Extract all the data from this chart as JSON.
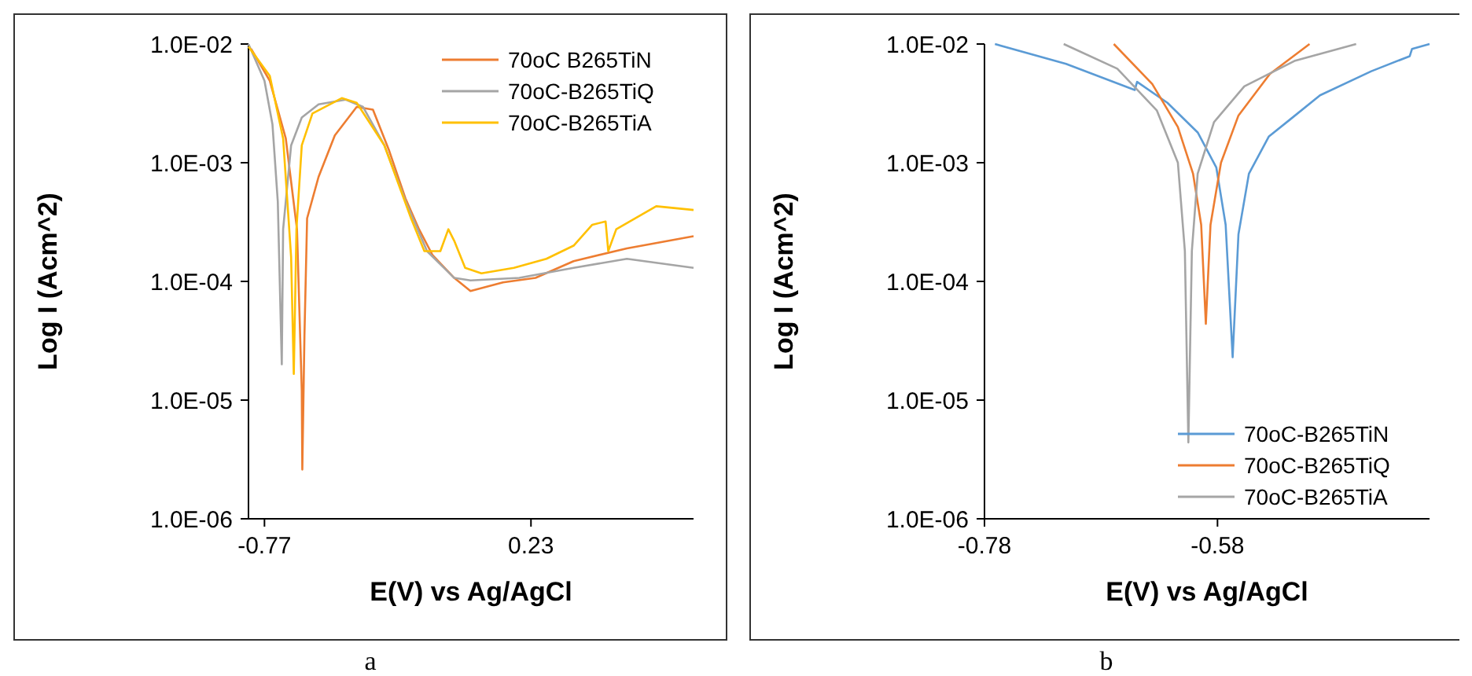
{
  "chart_data": [
    {
      "type": "line",
      "xlabel": "E(V) vs Ag/AgCl",
      "ylabel": "Log I (Acm^2)",
      "annotations": [
        "a"
      ],
      "log": "y",
      "grid": false,
      "legend": "top right",
      "xlim": [
        -0.83,
        0.84
      ],
      "xticks": [
        -0.77,
        0.23
      ],
      "ylim": [
        1e-06,
        0.01
      ],
      "yticks": [
        {
          "value": 0.01,
          "label": "1.0E-02"
        },
        {
          "value": 0.001,
          "label": "1.0E-03"
        },
        {
          "value": 0.0001,
          "label": "1.0E-04"
        },
        {
          "value": 1e-05,
          "label": "1.0E-05"
        },
        {
          "value": 1e-06,
          "label": "1.0E-06"
        }
      ],
      "series": [
        {
          "name": "70oC B265TiN",
          "color": "#ed7d31",
          "x": [
            -0.82,
            -0.75,
            -0.69,
            -0.648,
            -0.63,
            -0.628,
            -0.62,
            -0.61,
            -0.567,
            -0.506,
            -0.424,
            -0.363,
            -0.302,
            -0.241,
            -0.19,
            -0.139,
            -0.058,
            0.003,
            0.125,
            0.247,
            0.39,
            0.59,
            0.84
          ],
          "values": [
            0.0091,
            0.0049,
            0.0016,
            0.000275,
            1.2e-05,
            2.6e-06,
            3.5e-05,
            0.00034,
            0.00076,
            0.0017,
            0.00295,
            0.0028,
            0.00126,
            0.0005,
            0.000275,
            0.000166,
            0.000107,
            8.3e-05,
            9.8e-05,
            0.000107,
            0.000148,
            0.00019,
            0.00024
          ]
        },
        {
          "name": "70oC-B265TiQ",
          "color": "#a5a5a5",
          "x": [
            -0.83,
            -0.77,
            -0.74,
            -0.72,
            -0.705,
            -0.7,
            -0.67,
            -0.63,
            -0.567,
            -0.465,
            -0.4,
            -0.32,
            -0.24,
            -0.16,
            -0.058,
            0.003,
            0.186,
            0.39,
            0.59,
            0.84
          ],
          "values": [
            0.01,
            0.0049,
            0.0021,
            0.00047,
            2e-05,
            0.000275,
            0.0014,
            0.0024,
            0.0031,
            0.0034,
            0.00295,
            0.0014,
            0.00047,
            0.00018,
            0.000107,
            0.000102,
            0.000107,
            0.00013,
            0.000155,
            0.00013
          ]
        },
        {
          "name": "70oC-B265TiA",
          "color": "#ffc000",
          "x": [
            -0.83,
            -0.75,
            -0.7,
            -0.67,
            -0.66,
            -0.65,
            -0.63,
            -0.59,
            -0.48,
            -0.424,
            -0.32,
            -0.22,
            -0.17,
            -0.11,
            -0.08,
            -0.058,
            -0.017,
            0.044,
            0.166,
            0.288,
            0.39,
            0.46,
            0.51,
            0.52,
            0.55,
            0.7,
            0.84
          ],
          "values": [
            0.0095,
            0.0054,
            0.0016,
            0.00016,
            1.66e-05,
            0.000275,
            0.0014,
            0.0026,
            0.0035,
            0.0032,
            0.0014,
            0.00034,
            0.00018,
            0.00018,
            0.000275,
            0.00022,
            0.00013,
            0.000117,
            0.00013,
            0.000155,
            0.0002,
            0.0003,
            0.00032,
            0.00018,
            0.000275,
            0.00043,
            0.0004
          ]
        }
      ]
    },
    {
      "type": "line",
      "xlabel": "E(V) vs Ag/AgCl",
      "ylabel": "Log I (Acm^2)",
      "annotations": [
        "b"
      ],
      "log": "y",
      "grid": false,
      "legend": "bottom right",
      "xlim": [
        -0.78,
        -0.398
      ],
      "xticks": [
        -0.78,
        -0.58
      ],
      "ylim": [
        1e-06,
        0.01
      ],
      "yticks": [
        {
          "value": 0.01,
          "label": "1.0E-02"
        },
        {
          "value": 0.001,
          "label": "1.0E-03"
        },
        {
          "value": 0.0001,
          "label": "1.0E-04"
        },
        {
          "value": 1e-05,
          "label": "1.0E-05"
        },
        {
          "value": 1e-06,
          "label": "1.0E-06"
        }
      ],
      "series": [
        {
          "name": "70oC-B265TiN",
          "color": "#5b9bd5",
          "x": [
            -0.771,
            -0.71,
            -0.651,
            -0.649,
            -0.623,
            -0.597,
            -0.581,
            -0.573,
            -0.567,
            -0.562,
            -0.553,
            -0.536,
            -0.518,
            -0.492,
            -0.448,
            -0.415,
            -0.413,
            -0.398
          ],
          "values": [
            0.01,
            0.0068,
            0.0041,
            0.0048,
            0.0032,
            0.0018,
            0.00091,
            0.0003,
            2.3e-05,
            0.00025,
            0.00081,
            0.00166,
            0.0023,
            0.0037,
            0.0059,
            0.0079,
            0.0091,
            0.01
          ]
        },
        {
          "name": "70oC-B265TiQ",
          "color": "#ed7d31",
          "x": [
            -0.669,
            -0.636,
            -0.614,
            -0.601,
            -0.594,
            -0.59,
            -0.586,
            -0.577,
            -0.562,
            -0.535,
            -0.501
          ],
          "values": [
            0.01,
            0.0046,
            0.002,
            0.00081,
            0.0003,
            4.4e-05,
            0.0003,
            0.001,
            0.0025,
            0.0056,
            0.01
          ]
        },
        {
          "name": "70oC-B265TiA",
          "color": "#a5a5a5",
          "x": [
            -0.712,
            -0.666,
            -0.632,
            -0.614,
            -0.608,
            -0.605,
            -0.602,
            -0.597,
            -0.583,
            -0.557,
            -0.514,
            -0.461
          ],
          "values": [
            0.01,
            0.0062,
            0.00275,
            0.001,
            0.00018,
            4.4e-06,
            0.00018,
            0.00081,
            0.0022,
            0.0044,
            0.0072,
            0.01
          ]
        }
      ]
    }
  ]
}
